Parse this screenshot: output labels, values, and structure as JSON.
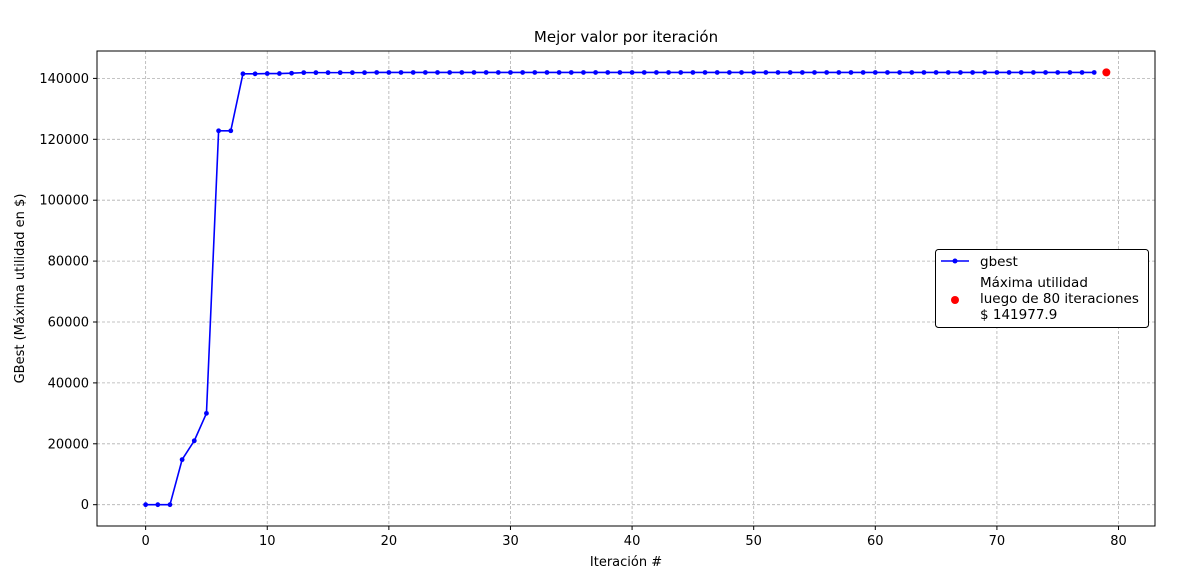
{
  "chart_data": {
    "type": "line",
    "title": "Mejor valor por iteración",
    "xlabel": "Iteración #",
    "ylabel": "GBest (Máxima utilidad en $)",
    "xlim": [
      -4,
      83
    ],
    "ylim": [
      -7000,
      149000
    ],
    "xticks": [
      0,
      10,
      20,
      30,
      40,
      50,
      60,
      70,
      80
    ],
    "yticks": [
      0,
      20000,
      40000,
      60000,
      80000,
      100000,
      120000,
      140000
    ],
    "grid": true,
    "legend_position": "center-right",
    "series": [
      {
        "name": "gbest",
        "color": "#0000ff",
        "marker": "dot",
        "x": [
          0,
          1,
          2,
          3,
          4,
          5,
          6,
          7,
          8,
          9,
          10,
          11,
          12,
          13,
          14,
          15,
          16,
          17,
          18,
          19,
          20,
          21,
          22,
          23,
          24,
          25,
          26,
          27,
          28,
          29,
          30,
          31,
          32,
          33,
          34,
          35,
          36,
          37,
          38,
          39,
          40,
          41,
          42,
          43,
          44,
          45,
          46,
          47,
          48,
          49,
          50,
          51,
          52,
          53,
          54,
          55,
          56,
          57,
          58,
          59,
          60,
          61,
          62,
          63,
          64,
          65,
          66,
          67,
          68,
          69,
          70,
          71,
          72,
          73,
          74,
          75,
          76,
          77,
          78
        ],
        "y": [
          0,
          0,
          0,
          14800,
          21000,
          30000,
          122800,
          122800,
          141500,
          141500,
          141600,
          141600,
          141700,
          141900,
          141900,
          141900,
          141900,
          141900,
          141900,
          141950,
          141950,
          141950,
          141950,
          141950,
          141950,
          141950,
          141950,
          141950,
          141950,
          141950,
          141950,
          141950,
          141950,
          141950,
          141950,
          141950,
          141950,
          141950,
          141950,
          141950,
          141950,
          141950,
          141950,
          141950,
          141950,
          141950,
          141950,
          141950,
          141950,
          141950,
          141950,
          141950,
          141950,
          141950,
          141950,
          141950,
          141950,
          141950,
          141950,
          141950,
          141950,
          141950,
          141950,
          141950,
          141950,
          141950,
          141950,
          141950,
          141950,
          141950,
          141950,
          141950,
          141950,
          141950,
          141950,
          141950,
          141950,
          141950,
          141950
        ]
      }
    ],
    "highlight": {
      "x": 79,
      "y": 141977.9,
      "color": "#ff0000",
      "label_lines": [
        "Máxima utilidad",
        "luego de 80 iteraciones",
        "$ 141977.9"
      ]
    }
  }
}
